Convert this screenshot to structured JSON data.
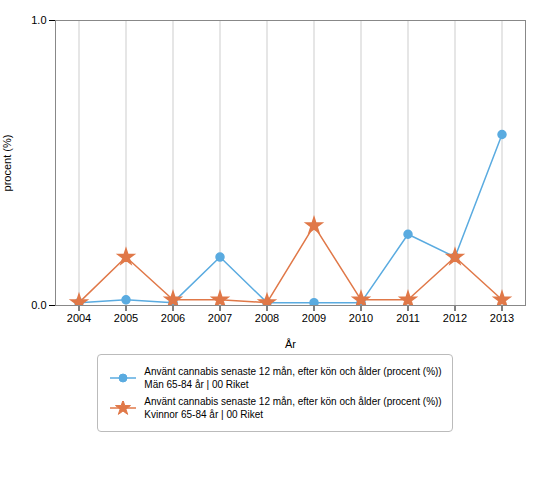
{
  "chart_data": {
    "type": "line",
    "x": [
      2004,
      2005,
      2006,
      2007,
      2008,
      2009,
      2010,
      2011,
      2012,
      2013
    ],
    "series": [
      {
        "name": "Använt cannabis senaste 12 mån, efter kön och ålder (procent (%))\nMän 65-84 år | 00 Riket",
        "color": "#5aabe0",
        "marker": "circle",
        "values": [
          0.01,
          0.02,
          0.01,
          0.17,
          0.01,
          0.01,
          0.01,
          0.25,
          0.17,
          0.6
        ]
      },
      {
        "name": "Använt cannabis senaste 12 mån, efter kön och ålder (procent (%))\nKvinnor 65-84 år | 00 Riket",
        "color": "#e07848",
        "marker": "star",
        "values": [
          0.01,
          0.17,
          0.02,
          0.02,
          0.01,
          0.28,
          0.02,
          0.02,
          0.17,
          0.02
        ]
      }
    ],
    "xlabel": "År",
    "ylabel": "procent (%)",
    "xlim": [
      2003.5,
      2013.5
    ],
    "xticks": [
      2004,
      2005,
      2006,
      2007,
      2008,
      2009,
      2010,
      2011,
      2012,
      2013
    ],
    "ylim": [
      0,
      1.0
    ],
    "yticks": [
      0,
      1
    ],
    "grid": "x",
    "legend": "bottom"
  }
}
